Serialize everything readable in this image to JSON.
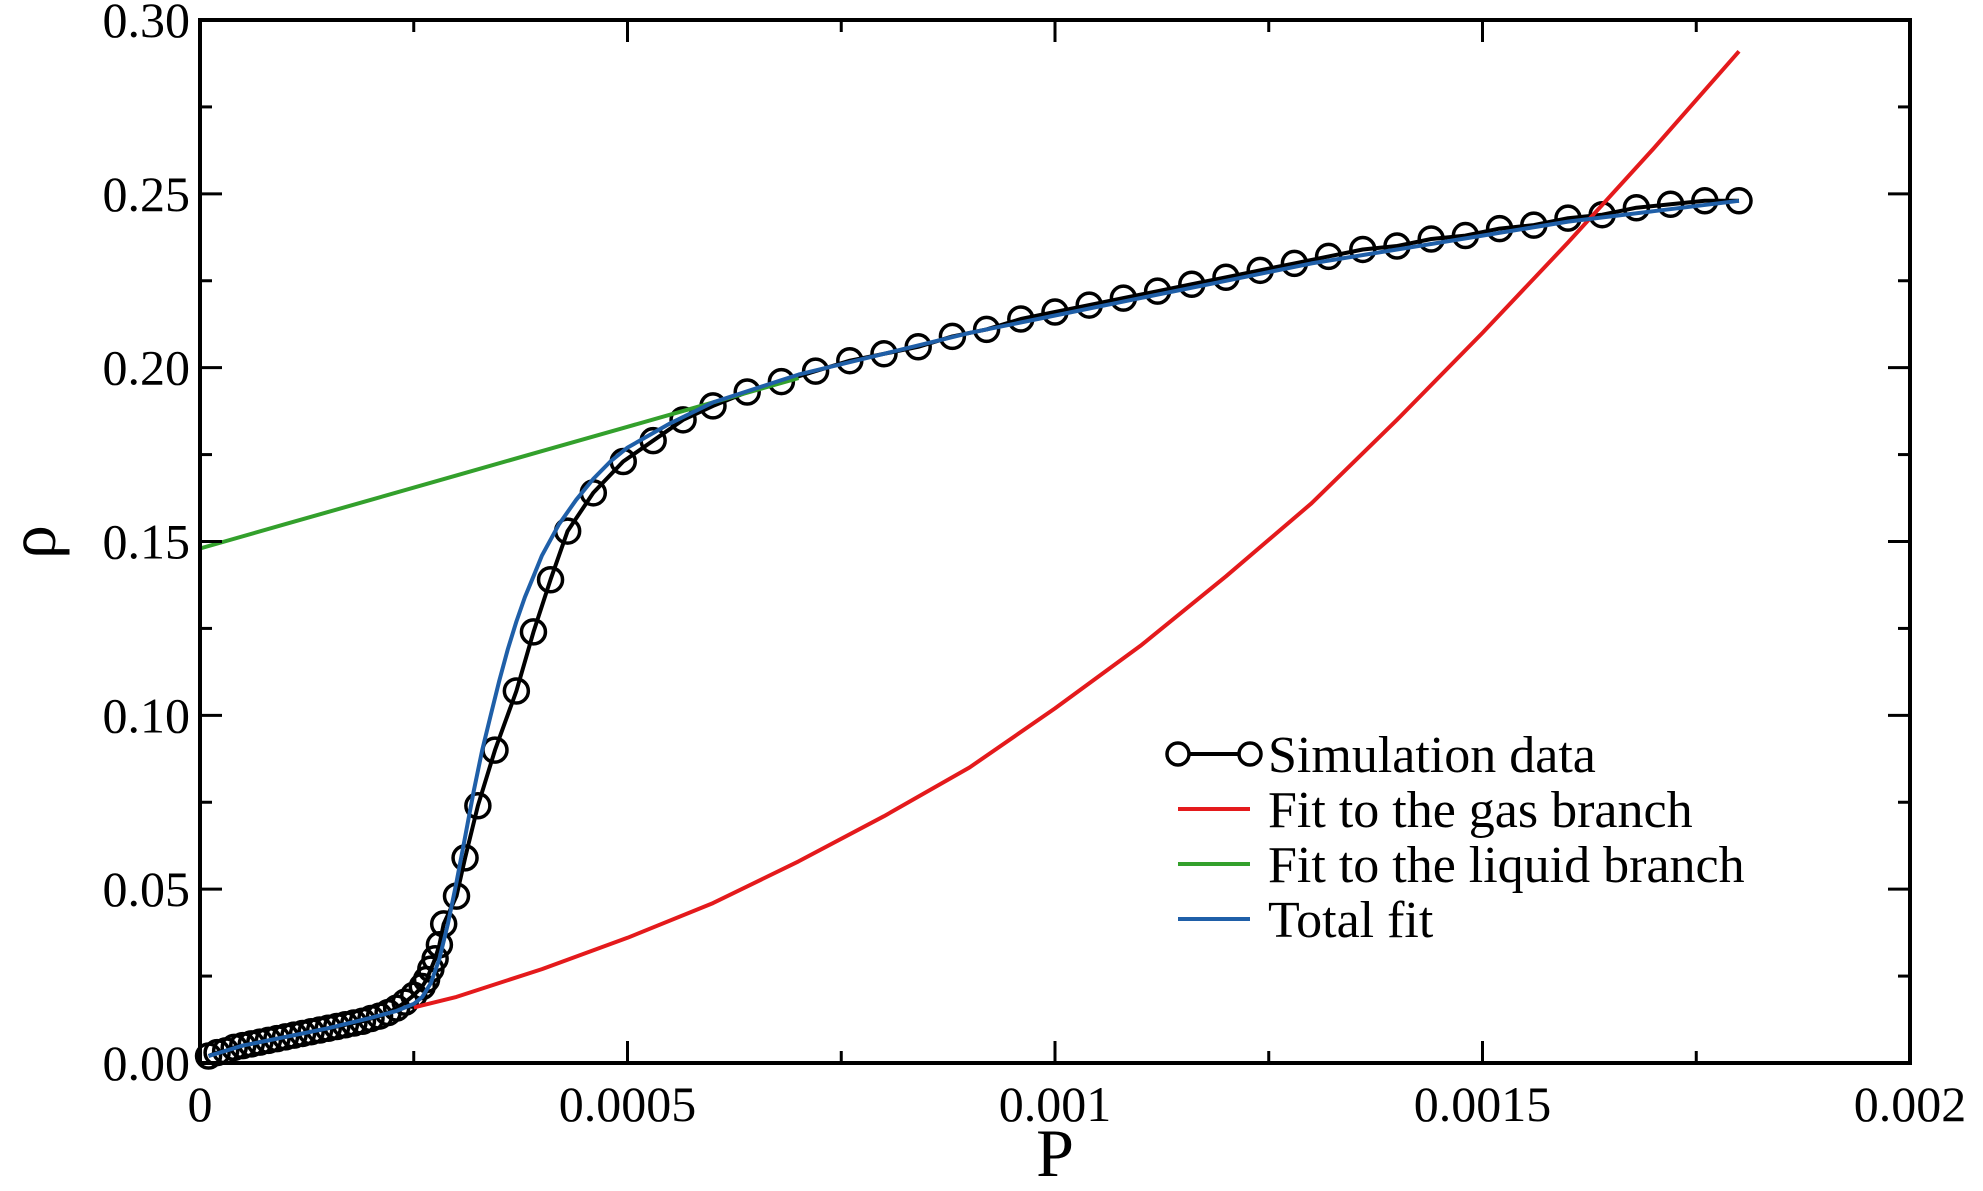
{
  "chart_data": {
    "type": "line",
    "title": "",
    "xlabel": "P",
    "ylabel": "ρ",
    "xlim": [
      0,
      0.002
    ],
    "ylim": [
      0,
      0.3
    ],
    "x_ticks": [
      {
        "value": 0,
        "label": "0"
      },
      {
        "value": 0.0005,
        "label": "0.0005"
      },
      {
        "value": 0.001,
        "label": "0.001"
      },
      {
        "value": 0.0015,
        "label": "0.0015"
      },
      {
        "value": 0.002,
        "label": "0.002"
      }
    ],
    "y_ticks": [
      {
        "value": 0,
        "label": "0.00"
      },
      {
        "value": 0.05,
        "label": "0.05"
      },
      {
        "value": 0.1,
        "label": "0.10"
      },
      {
        "value": 0.15,
        "label": "0.15"
      },
      {
        "value": 0.2,
        "label": "0.20"
      },
      {
        "value": 0.25,
        "label": "0.25"
      },
      {
        "value": 0.3,
        "label": "0.30"
      }
    ],
    "grid": false,
    "legend_position": "bottom-right",
    "series": [
      {
        "name": "Simulation data",
        "color": "#000000",
        "style": "line-open-circles",
        "x": [
          1e-05,
          2e-05,
          3e-05,
          4e-05,
          5e-05,
          6e-05,
          7e-05,
          8e-05,
          9e-05,
          0.0001,
          0.00011,
          0.00012,
          0.00013,
          0.00014,
          0.00015,
          0.00016,
          0.00017,
          0.00018,
          0.00019,
          0.0002,
          0.00021,
          0.00022,
          0.00023,
          0.00024,
          0.00025,
          0.00026,
          0.000265,
          0.00027,
          0.000275,
          0.00028,
          0.000285,
          0.0003,
          0.00031,
          0.000325,
          0.000345,
          0.00037,
          0.00039,
          0.00041,
          0.00043,
          0.00046,
          0.000495,
          0.00053,
          0.000565,
          0.0006,
          0.00064,
          0.00068,
          0.00072,
          0.00076,
          0.0008,
          0.00084,
          0.00088,
          0.00092,
          0.00096,
          0.001,
          0.00104,
          0.00108,
          0.00112,
          0.00116,
          0.0012,
          0.00124,
          0.00128,
          0.00132,
          0.00136,
          0.0014,
          0.00144,
          0.00148,
          0.00152,
          0.00156,
          0.0016,
          0.00164,
          0.00168,
          0.00172,
          0.00176,
          0.0018
        ],
        "y": [
          0.002,
          0.003,
          0.0035,
          0.0045,
          0.005,
          0.0055,
          0.006,
          0.0065,
          0.007,
          0.0075,
          0.008,
          0.0085,
          0.009,
          0.0095,
          0.01,
          0.0105,
          0.011,
          0.0115,
          0.012,
          0.0128,
          0.0135,
          0.0145,
          0.0158,
          0.0175,
          0.0195,
          0.022,
          0.024,
          0.027,
          0.03,
          0.034,
          0.04,
          0.048,
          0.059,
          0.074,
          0.09,
          0.107,
          0.124,
          0.139,
          0.153,
          0.164,
          0.173,
          0.179,
          0.185,
          0.189,
          0.193,
          0.196,
          0.199,
          0.202,
          0.204,
          0.206,
          0.209,
          0.211,
          0.214,
          0.216,
          0.218,
          0.22,
          0.222,
          0.224,
          0.226,
          0.228,
          0.23,
          0.232,
          0.234,
          0.235,
          0.237,
          0.238,
          0.24,
          0.241,
          0.243,
          0.244,
          0.246,
          0.247,
          0.248,
          0.248
        ]
      },
      {
        "name": "Fit to the gas branch",
        "color": "#e41a1c",
        "style": "line",
        "x": [
          0.00025,
          0.0003,
          0.0004,
          0.0005,
          0.0006,
          0.0007,
          0.0008,
          0.0009,
          0.001,
          0.0011,
          0.0012,
          0.0013,
          0.0014,
          0.0015,
          0.0016,
          0.0017,
          0.0018
        ],
        "y": [
          0.016,
          0.019,
          0.027,
          0.036,
          0.046,
          0.058,
          0.071,
          0.085,
          0.102,
          0.12,
          0.14,
          0.161,
          0.185,
          0.21,
          0.236,
          0.263,
          0.291
        ]
      },
      {
        "name": "Fit to the liquid branch",
        "color": "#33a02c",
        "style": "line",
        "x": [
          0,
          0.0001,
          0.0002,
          0.0003,
          0.0004,
          0.0005,
          0.0006,
          0.0007
        ],
        "y": [
          0.148,
          0.155,
          0.162,
          0.169,
          0.176,
          0.183,
          0.19,
          0.197
        ]
      },
      {
        "name": "Total fit",
        "color": "#1f5fa8",
        "style": "line",
        "x": [
          1e-05,
          5e-05,
          0.0001,
          0.00015,
          0.0002,
          0.00023,
          0.00025,
          0.00026,
          0.00027,
          0.00028,
          0.00029,
          0.0003,
          0.00031,
          0.00032,
          0.00033,
          0.00034,
          0.00035,
          0.00036,
          0.00037,
          0.00038,
          0.00039,
          0.0004,
          0.00042,
          0.00044,
          0.00046,
          0.00048,
          0.0005,
          0.00055,
          0.0006,
          0.00065,
          0.0007,
          0.0008,
          0.0009,
          0.001,
          0.0011,
          0.0012,
          0.0013,
          0.0014,
          0.0015,
          0.0016,
          0.0017,
          0.0018
        ],
        "y": [
          0.002,
          0.005,
          0.0075,
          0.01,
          0.013,
          0.015,
          0.017,
          0.019,
          0.023,
          0.03,
          0.04,
          0.052,
          0.065,
          0.078,
          0.09,
          0.1,
          0.11,
          0.119,
          0.127,
          0.134,
          0.14,
          0.146,
          0.155,
          0.162,
          0.168,
          0.173,
          0.177,
          0.184,
          0.19,
          0.194,
          0.198,
          0.204,
          0.21,
          0.215,
          0.22,
          0.225,
          0.23,
          0.234,
          0.238,
          0.242,
          0.245,
          0.248
        ]
      }
    ]
  }
}
